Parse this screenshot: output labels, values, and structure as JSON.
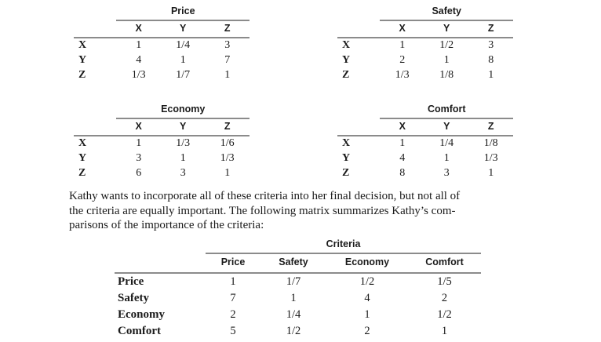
{
  "colors": {
    "rule": "#8b8b8b",
    "text": "#1b1b1b",
    "background": "#ffffff"
  },
  "matrices": [
    {
      "title": "Price",
      "col_headers": [
        "X",
        "Y",
        "Z"
      ],
      "rows": [
        {
          "label": "X",
          "cells": [
            "1",
            "1/4",
            "3"
          ]
        },
        {
          "label": "Y",
          "cells": [
            "4",
            "1",
            "7"
          ]
        },
        {
          "label": "Z",
          "cells": [
            "1/3",
            "1/7",
            "1"
          ]
        }
      ]
    },
    {
      "title": "Safety",
      "col_headers": [
        "X",
        "Y",
        "Z"
      ],
      "rows": [
        {
          "label": "X",
          "cells": [
            "1",
            "1/2",
            "3"
          ]
        },
        {
          "label": "Y",
          "cells": [
            "2",
            "1",
            "8"
          ]
        },
        {
          "label": "Z",
          "cells": [
            "1/3",
            "1/8",
            "1"
          ]
        }
      ]
    },
    {
      "title": "Economy",
      "col_headers": [
        "X",
        "Y",
        "Z"
      ],
      "rows": [
        {
          "label": "X",
          "cells": [
            "1",
            "1/3",
            "1/6"
          ]
        },
        {
          "label": "Y",
          "cells": [
            "3",
            "1",
            "1/3"
          ]
        },
        {
          "label": "Z",
          "cells": [
            "6",
            "3",
            "1"
          ]
        }
      ]
    },
    {
      "title": "Comfort",
      "col_headers": [
        "X",
        "Y",
        "Z"
      ],
      "rows": [
        {
          "label": "X",
          "cells": [
            "1",
            "1/4",
            "1/8"
          ]
        },
        {
          "label": "Y",
          "cells": [
            "4",
            "1",
            "1/3"
          ]
        },
        {
          "label": "Z",
          "cells": [
            "8",
            "3",
            "1"
          ]
        }
      ]
    }
  ],
  "paragraph": {
    "lines": [
      "Kathy wants to incorporate all of these criteria into her final decision, but not all of",
      "the criteria are equally important. The following matrix summarizes Kathy’s com-",
      "parisons of the importance of the criteria:"
    ]
  },
  "criteria_table": {
    "title": "Criteria",
    "col_headers": [
      "Price",
      "Safety",
      "Economy",
      "Comfort"
    ],
    "rows": [
      {
        "label": "Price",
        "cells": [
          "1",
          "1/7",
          "1/2",
          "1/5"
        ]
      },
      {
        "label": "Safety",
        "cells": [
          "7",
          "1",
          "4",
          "2"
        ]
      },
      {
        "label": "Economy",
        "cells": [
          "2",
          "1/4",
          "1",
          "1/2"
        ]
      },
      {
        "label": "Comfort",
        "cells": [
          "5",
          "1/2",
          "2",
          "1"
        ]
      }
    ]
  }
}
